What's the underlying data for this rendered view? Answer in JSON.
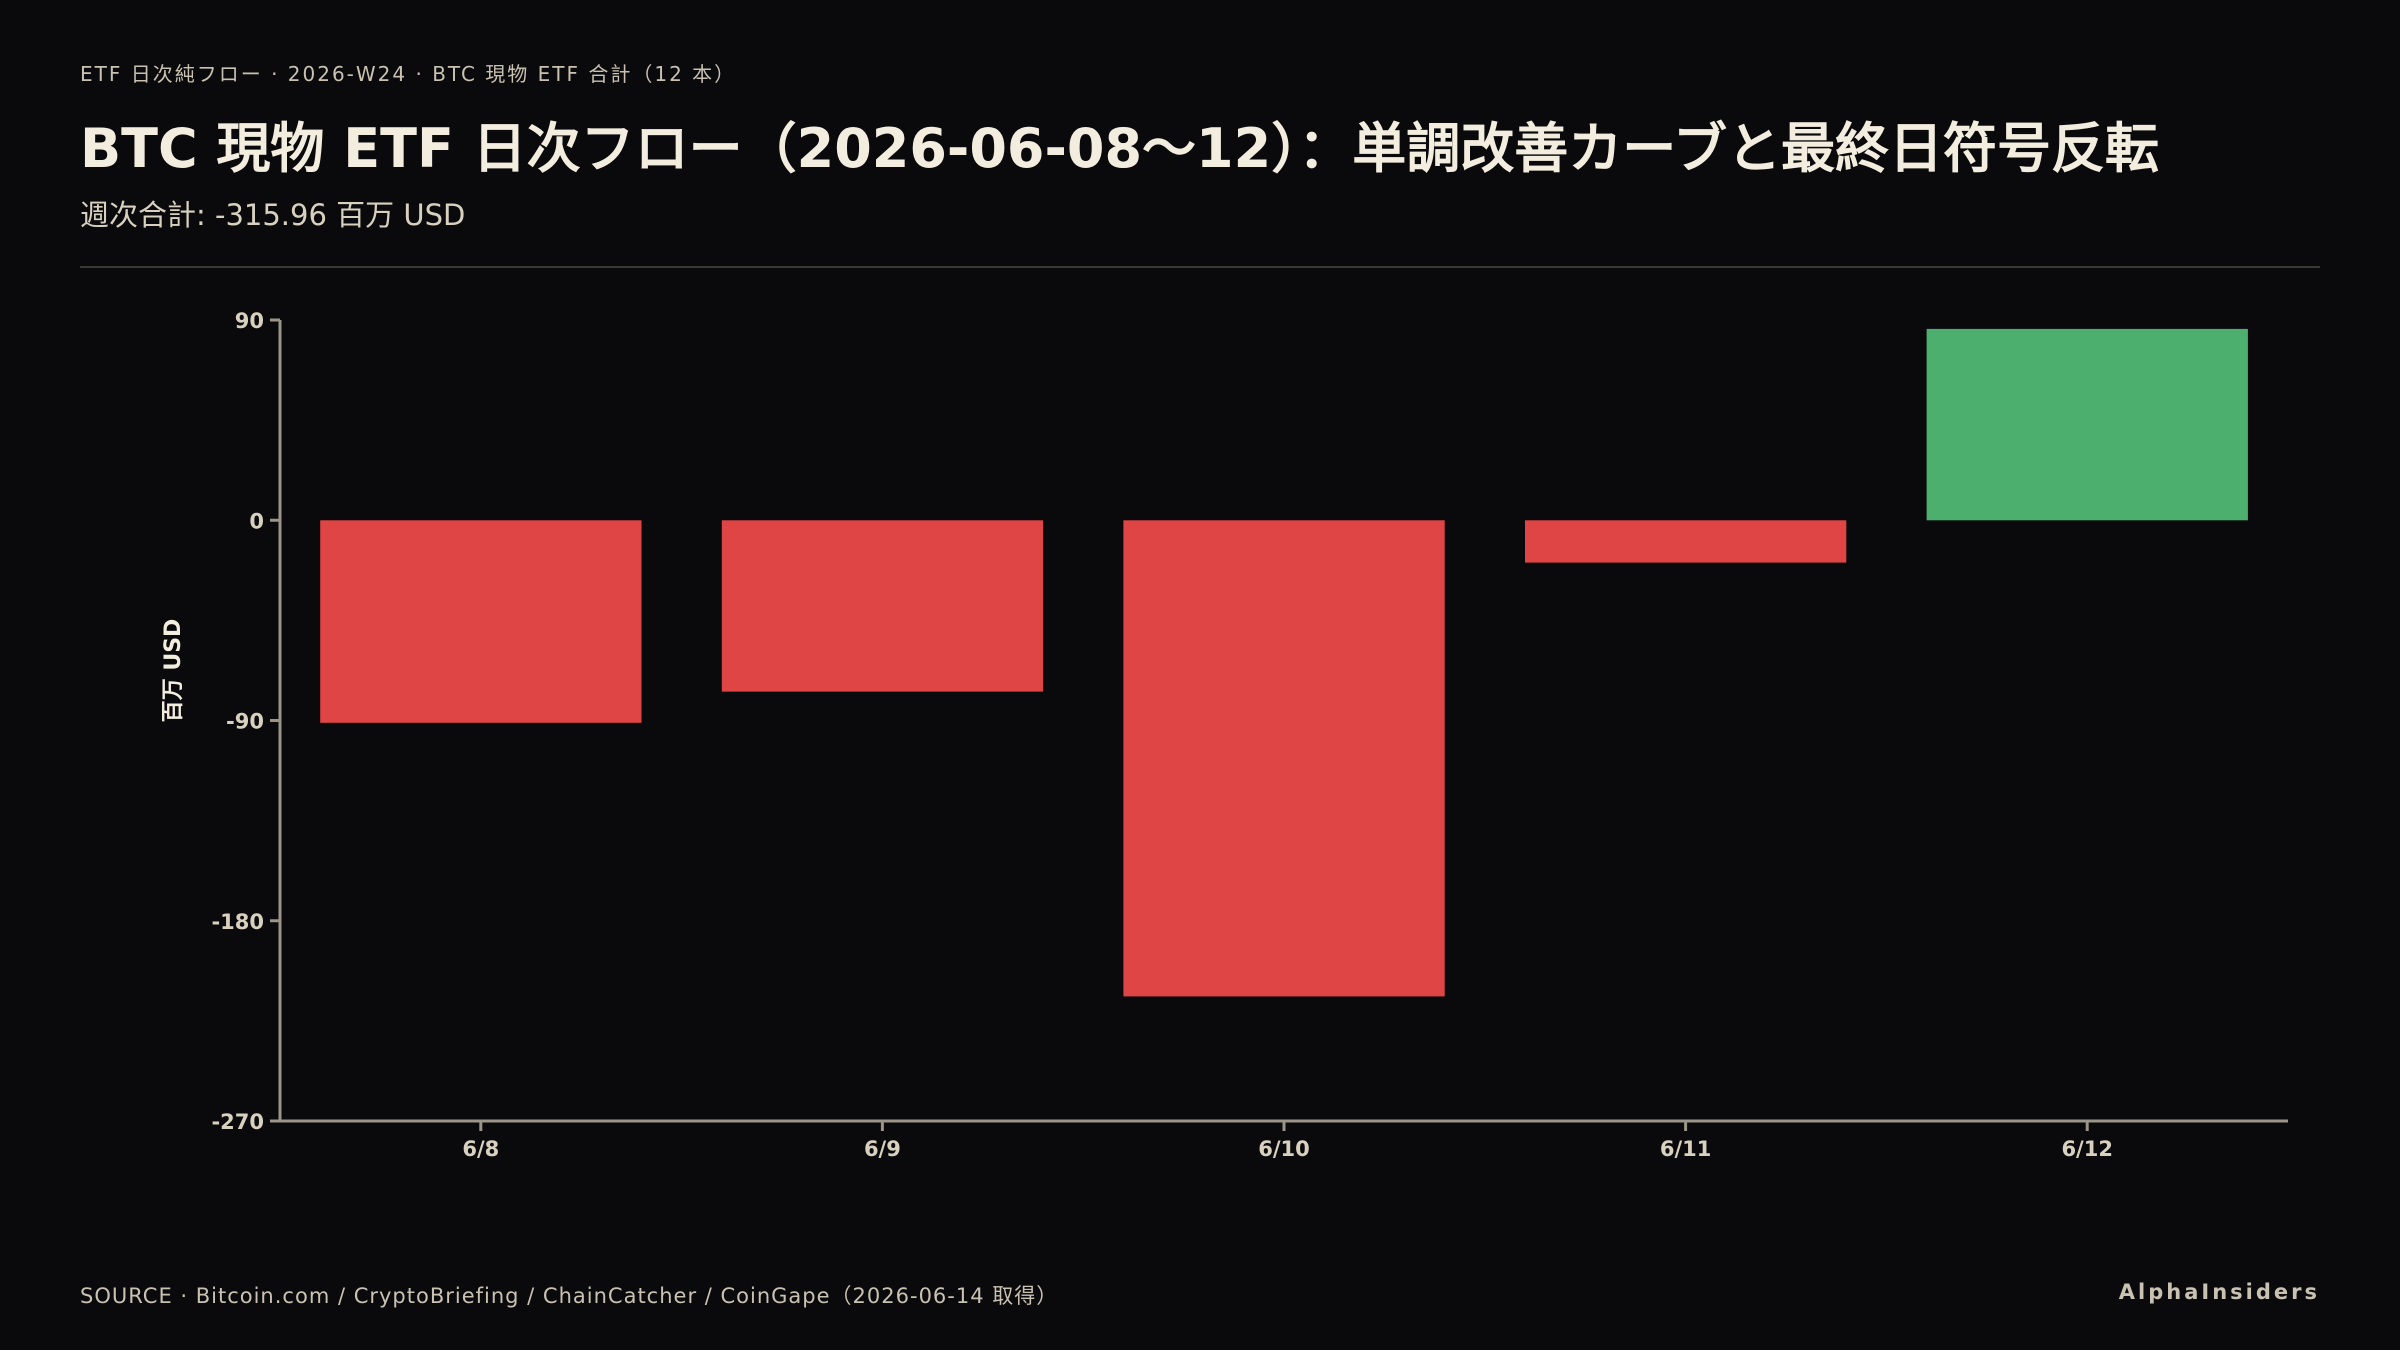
{
  "header": {
    "kicker": "ETF 日次純フロー · 2026-W24 · BTC 現物 ETF 合計（12 本）",
    "title": "BTC 現物 ETF 日次フロー（2026-06-08〜12）：単調改善カーブと最終日符号反転",
    "subtitle": "週次合計: -315.96 百万 USD"
  },
  "chart_data": {
    "type": "bar",
    "categories": [
      "6/8",
      "6/9",
      "6/10",
      "6/11",
      "6/12"
    ],
    "values": [
      -91,
      -77,
      -214,
      -19,
      86
    ],
    "ylabel": "百万 USD",
    "ylim": [
      -270,
      90
    ],
    "yticks": [
      90,
      0,
      -90,
      -180,
      -270
    ],
    "grid": false,
    "colors": {
      "positive": "#4caf6e",
      "negative": "#e04545",
      "axis": "#9a9588",
      "tick_label": "#d8d1c0"
    }
  },
  "footer": {
    "source": "SOURCE · Bitcoin.com / CryptoBriefing / ChainCatcher / CoinGape（2026-06-14 取得）",
    "brand": "AlphaInsiders"
  }
}
